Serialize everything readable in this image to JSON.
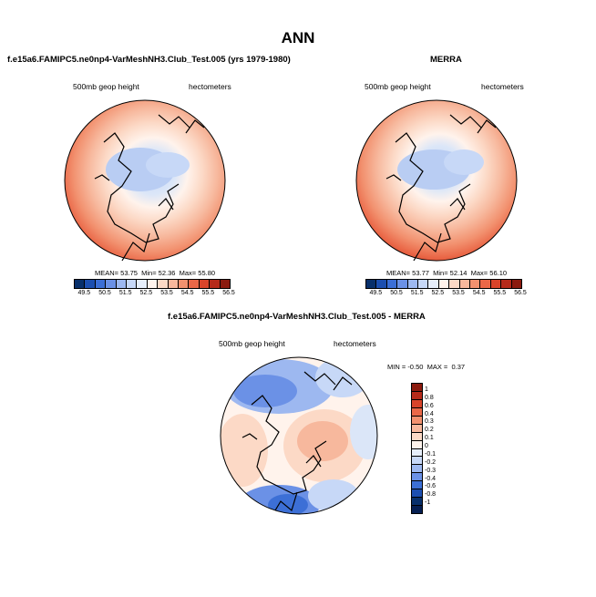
{
  "title": "ANN",
  "panels": [
    {
      "title": "f.e15a6.FAMIPC5.ne0np4-VarMeshNH3.Club_Test.005 (yrs 1979-1980)",
      "left_label": "500mb geop height",
      "right_label": "hectometers",
      "stats": {
        "mean_label": "MEAN=",
        "mean": "53.75",
        "min_label": "Min=",
        "min": "52.36",
        "max_label": "Max=",
        "max": "55.80"
      }
    },
    {
      "title": "MERRA",
      "left_label": "500mb geop height",
      "right_label": "hectometers",
      "stats": {
        "mean_label": "MEAN=",
        "mean": "53.77",
        "min_label": "Min=",
        "min": "52.14",
        "max_label": "Max=",
        "max": "56.10"
      }
    }
  ],
  "diff_panel": {
    "title": "f.e15a6.FAMIPC5.ne0np4-VarMeshNH3.Club_Test.005 - MERRA",
    "left_label": "500mb geop height",
    "right_label": "hectometers",
    "minmax": {
      "min_label": "MIN =",
      "min": "-0.50",
      "max_label": "MAX =",
      "max": "0.37"
    }
  },
  "colorbar_horizontal": {
    "labels": [
      "49.5",
      "50.5",
      "51.5",
      "52.5",
      "53.5",
      "54.5",
      "55.5",
      "56.5"
    ],
    "colors": [
      "#08306b",
      "#1c4fb0",
      "#3c6fd6",
      "#6b91e6",
      "#9db8f0",
      "#c7d8f7",
      "#e6eefb",
      "#fff3ec",
      "#fcd9c6",
      "#f7b89d",
      "#f2916f",
      "#ea6848",
      "#d8442a",
      "#b52a1a",
      "#8b1a0e"
    ]
  },
  "colorbar_vertical": {
    "labels": [
      "1",
      "0.8",
      "0.6",
      "0.4",
      "0.3",
      "0.2",
      "0.1",
      "0",
      "-0.1",
      "-0.2",
      "-0.3",
      "-0.4",
      "-0.6",
      "-0.8",
      "-1"
    ],
    "colors": [
      "#8b1a0e",
      "#b52a1a",
      "#d8442a",
      "#ea6848",
      "#f2916f",
      "#f7b89d",
      "#fcd9c6",
      "#fff3ec",
      "#e6eefb",
      "#c7d8f7",
      "#9db8f0",
      "#6b91e6",
      "#3c6fd6",
      "#1c4fb0",
      "#08306b",
      "#061f52"
    ]
  }
}
